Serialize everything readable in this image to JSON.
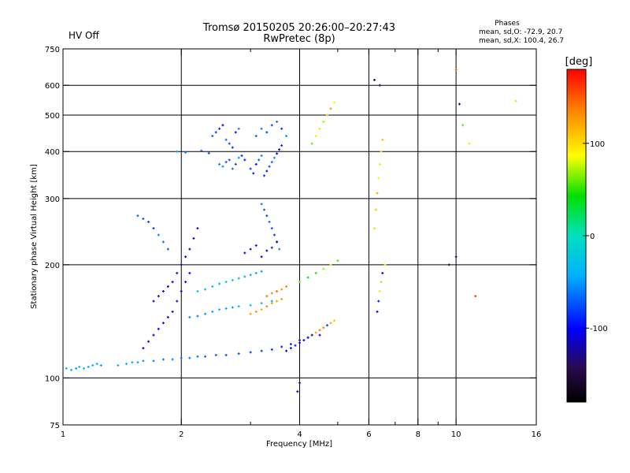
{
  "chart_data": {
    "type": "scatter",
    "title": "Tromsø 20150205 20:26:00–20:27:43",
    "subtitle": "RwPretec (8p)",
    "status_label": "HV Off",
    "status_color": "#cc0000",
    "phase_box": {
      "title": "Phases",
      "line_o": "mean, sd,O: -72.9, 20.7",
      "line_x": "mean, sd,X: 100.4, 26.7"
    },
    "xlabel": "Frequency [MHz]",
    "ylabel": "Stationary phase Virtual Height [km]",
    "x_scale": "log",
    "y_scale": "log",
    "xlim": [
      1,
      16
    ],
    "ylim": [
      75,
      750
    ],
    "x_ticks": [
      1,
      2,
      4,
      6,
      8,
      10,
      16
    ],
    "x_tick_labels": [
      "1",
      "2",
      "4",
      "6",
      "8",
      "10",
      "16"
    ],
    "x_minor_ticks": [
      3,
      5,
      7,
      9
    ],
    "x_grid": [
      2,
      4,
      6,
      8,
      10
    ],
    "y_ticks": [
      75,
      100,
      200,
      300,
      400,
      500,
      600,
      750
    ],
    "y_tick_labels": [
      "75",
      "100",
      "200",
      "300",
      "400",
      "500",
      "600",
      "750"
    ],
    "y_grid": [
      100,
      200,
      300,
      400,
      500,
      600
    ],
    "grid": true,
    "colorbar": {
      "label": "[deg]",
      "min": -180,
      "max": 180,
      "ticks": [
        100,
        0,
        -100
      ],
      "tick_labels": [
        "100",
        "0",
        "-100"
      ]
    },
    "series": [
      {
        "name": "",
        "x": [
          1.02,
          1.05,
          1.08,
          1.1,
          1.13,
          1.16,
          1.19,
          1.22,
          1.25
        ],
        "y": [
          106,
          105,
          106,
          107,
          106,
          107,
          108,
          109,
          108
        ],
        "phase": [
          -45,
          -40,
          -50,
          -38,
          -42,
          -46,
          -40,
          -44,
          -48
        ]
      },
      {
        "name": "",
        "x": [
          1.38,
          1.45,
          1.5,
          1.55,
          1.6,
          1.7,
          1.8,
          1.9,
          2.0,
          2.1,
          2.2,
          2.3,
          2.45,
          2.6,
          2.8,
          3.0,
          3.2,
          3.4,
          3.6,
          3.8,
          4.0,
          4.2,
          4.5
        ],
        "y": [
          108,
          109,
          110,
          110,
          111,
          111,
          112,
          112,
          113,
          113,
          114,
          114,
          115,
          115,
          116,
          117,
          118,
          119,
          121,
          123,
          126,
          128,
          130
        ],
        "phase": [
          -40,
          -42,
          -45,
          -48,
          -50,
          -55,
          -60,
          -58,
          -62,
          -60,
          -65,
          -70,
          -72,
          -75,
          -78,
          -80,
          -85,
          -88,
          -90,
          -92,
          -95,
          -98,
          -100
        ]
      },
      {
        "name": "",
        "x": [
          1.6,
          1.65,
          1.7,
          1.75,
          1.8,
          1.85,
          1.9,
          1.95,
          2.0,
          2.05,
          2.1
        ],
        "y": [
          120,
          125,
          130,
          135,
          140,
          145,
          150,
          160,
          170,
          180,
          190
        ],
        "phase": [
          -110,
          -105,
          -100,
          -108,
          -112,
          -115,
          -120,
          -118,
          -110,
          -105,
          -100
        ]
      },
      {
        "name": "",
        "x": [
          1.7,
          1.75,
          1.8,
          1.85,
          1.9,
          1.95,
          2.0,
          2.05,
          2.1,
          2.15,
          2.2
        ],
        "y": [
          160,
          165,
          170,
          175,
          180,
          190,
          200,
          210,
          220,
          235,
          250
        ],
        "phase": [
          -120,
          -125,
          -115,
          -110,
          -118,
          -122,
          -126,
          -120,
          -116,
          -112,
          -108
        ]
      },
      {
        "name": "",
        "x": [
          1.55,
          1.6,
          1.65,
          1.7,
          1.75,
          1.8,
          1.85
        ],
        "y": [
          270,
          265,
          260,
          250,
          240,
          230,
          220
        ],
        "phase": [
          -70,
          -75,
          -80,
          -85,
          -60,
          -65,
          -70
        ]
      },
      {
        "name": "",
        "x": [
          2.1,
          2.2,
          2.3,
          2.4,
          2.5,
          2.6,
          2.7,
          2.8,
          3.0,
          3.2,
          3.4,
          3.6
        ],
        "y": [
          145,
          146,
          148,
          150,
          152,
          153,
          154,
          155,
          156,
          158,
          160,
          162
        ],
        "phase": [
          -55,
          -60,
          -50,
          -45,
          -40,
          -48,
          -52,
          -35,
          -30,
          -40,
          -45,
          -38
        ]
      },
      {
        "name": "",
        "x": [
          2.2,
          2.3,
          2.4,
          2.5,
          2.6,
          2.7,
          2.8,
          2.9,
          3.0,
          3.1,
          3.2
        ],
        "y": [
          170,
          172,
          175,
          178,
          180,
          182,
          184,
          186,
          188,
          190,
          192
        ],
        "phase": [
          -30,
          -25,
          -35,
          -40,
          -20,
          -28,
          -32,
          -38,
          -42,
          -45,
          -50
        ]
      },
      {
        "name": "",
        "x": [
          2.4,
          2.45,
          2.5,
          2.55,
          2.6,
          2.65,
          2.7,
          2.75,
          2.8
        ],
        "y": [
          440,
          450,
          460,
          470,
          430,
          420,
          410,
          450,
          460
        ],
        "phase": [
          -70,
          -80,
          -90,
          -100,
          -65,
          -75,
          -85,
          -95,
          -60
        ]
      },
      {
        "name": "",
        "x": [
          2.5,
          2.55,
          2.6,
          2.65,
          2.7,
          2.75,
          2.8,
          2.85,
          2.9
        ],
        "y": [
          370,
          365,
          375,
          380,
          360,
          370,
          385,
          390,
          380
        ],
        "phase": [
          -60,
          -55,
          -70,
          -75,
          -65,
          -80,
          -50,
          -85,
          -90
        ]
      },
      {
        "name": "",
        "x": [
          3.0,
          3.05,
          3.1,
          3.15,
          3.2,
          3.25,
          3.3,
          3.35,
          3.4,
          3.45,
          3.5,
          3.55,
          3.6
        ],
        "y": [
          360,
          350,
          370,
          380,
          390,
          345,
          355,
          365,
          375,
          385,
          395,
          405,
          415
        ],
        "phase": [
          -80,
          -90,
          -100,
          -70,
          -60,
          -85,
          -95,
          -75,
          -65,
          -55,
          -110,
          -100,
          -90
        ]
      },
      {
        "name": "",
        "x": [
          3.1,
          3.2,
          3.3,
          3.4,
          3.5,
          3.6,
          3.7
        ],
        "y": [
          440,
          460,
          450,
          470,
          480,
          460,
          440
        ],
        "phase": [
          -70,
          -60,
          -80,
          -75,
          -65,
          -85,
          -55
        ]
      },
      {
        "name": "",
        "x": [
          3.2,
          3.25,
          3.3,
          3.35,
          3.4,
          3.45,
          3.5,
          3.55
        ],
        "y": [
          290,
          280,
          270,
          260,
          250,
          240,
          230,
          220
        ],
        "phase": [
          -60,
          -70,
          -80,
          -65,
          -75,
          -85,
          -90,
          -55
        ]
      },
      {
        "name": "",
        "x": [
          2.9,
          3.0,
          3.1,
          3.2,
          3.3,
          3.4,
          3.5
        ],
        "y": [
          215,
          220,
          225,
          210,
          218,
          222,
          230
        ],
        "phase": [
          -100,
          -110,
          -95,
          -105,
          -115,
          -90,
          -120
        ]
      },
      {
        "name": "",
        "x": [
          3.0,
          3.1,
          3.2,
          3.3,
          3.4,
          3.5,
          3.6
        ],
        "y": [
          148,
          150,
          152,
          155,
          158,
          160,
          162
        ],
        "phase": [
          125,
          130,
          120,
          135,
          128,
          122,
          118
        ]
      },
      {
        "name": "",
        "x": [
          3.3,
          3.4,
          3.5,
          3.6,
          3.7
        ],
        "y": [
          165,
          168,
          170,
          172,
          175
        ],
        "phase": [
          140,
          135,
          145,
          130,
          138
        ]
      },
      {
        "name": "",
        "x": [
          3.7,
          3.8,
          3.9,
          4.0,
          4.1,
          4.2,
          4.3,
          4.4,
          4.5,
          4.6,
          4.7,
          4.8,
          4.9
        ],
        "y": [
          118,
          120,
          122,
          124,
          126,
          128,
          130,
          132,
          134,
          136,
          138,
          140,
          142
        ],
        "phase": [
          -110,
          -100,
          -90,
          -115,
          -105,
          -95,
          -120,
          130,
          140,
          135,
          -80,
          120,
          110
        ]
      },
      {
        "name": "",
        "x": [
          4.3,
          4.4,
          4.5,
          4.6,
          4.7,
          4.8,
          4.9
        ],
        "y": [
          420,
          440,
          460,
          480,
          500,
          520,
          540
        ],
        "phase": [
          60,
          80,
          100,
          70,
          110,
          130,
          90
        ]
      },
      {
        "name": "",
        "x": [
          4.0,
          4.2,
          4.4,
          4.6,
          4.8,
          5.0
        ],
        "y": [
          180,
          185,
          190,
          195,
          200,
          205
        ],
        "phase": [
          60,
          40,
          50,
          70,
          80,
          55
        ]
      },
      {
        "name": "",
        "x": [
          6.2,
          6.25,
          6.3,
          6.35,
          6.4,
          6.45,
          6.5
        ],
        "y": [
          250,
          280,
          310,
          340,
          370,
          400,
          430
        ],
        "phase": [
          100,
          110,
          120,
          90,
          95,
          105,
          115
        ]
      },
      {
        "name": "",
        "x": [
          6.3,
          6.35,
          6.4,
          6.45,
          6.5,
          6.6
        ],
        "y": [
          150,
          160,
          170,
          180,
          190,
          200
        ],
        "phase": [
          -100,
          -90,
          80,
          70,
          -110,
          90
        ]
      },
      {
        "name": "",
        "x": [
          6.2,
          6.4
        ],
        "y": [
          620,
          600
        ],
        "phase": [
          -140,
          -130
        ]
      },
      {
        "name": "",
        "x": [
          9.6,
          10.0,
          10.4,
          10.8
        ],
        "y": [
          200,
          210,
          470,
          420
        ],
        "phase": [
          -150,
          -140,
          60,
          80
        ]
      },
      {
        "name": "",
        "x": [
          10.0,
          10.2
        ],
        "y": [
          660,
          535
        ],
        "phase": [
          150,
          -120
        ]
      },
      {
        "name": "",
        "x": [
          14.2,
          11.2
        ],
        "y": [
          545,
          165
        ],
        "phase": [
          100,
          160
        ]
      },
      {
        "name": "",
        "x": [
          1.95,
          2.05,
          2.25,
          2.35
        ],
        "y": [
          400,
          398,
          402,
          396
        ],
        "phase": [
          -50,
          -60,
          -70,
          -80
        ]
      },
      {
        "name": "",
        "x": [
          4.0,
          3.95
        ],
        "y": [
          97,
          92
        ],
        "phase": [
          -120,
          -110
        ]
      }
    ]
  }
}
